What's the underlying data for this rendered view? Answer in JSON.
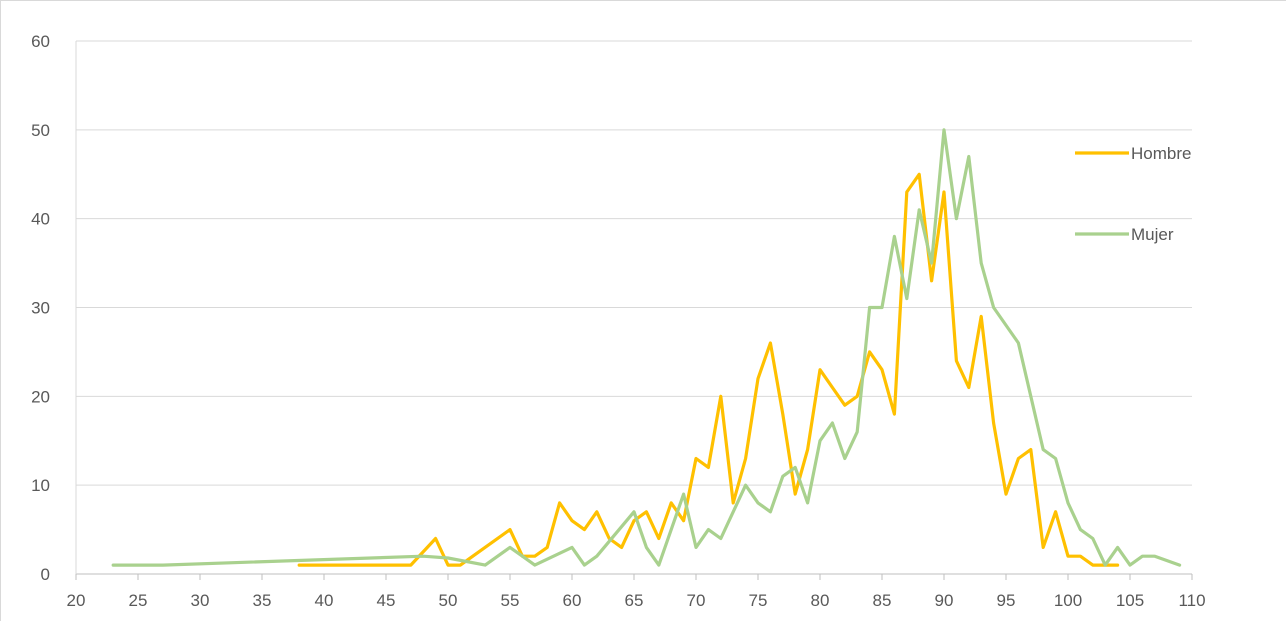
{
  "chart_data": {
    "type": "line",
    "title": "",
    "xlabel": "",
    "ylabel": "",
    "xlim": [
      20,
      110
    ],
    "ylim": [
      0,
      60
    ],
    "x_ticks": [
      "20",
      "25",
      "30",
      "35",
      "40",
      "45",
      "50",
      "55",
      "60",
      "65",
      "70",
      "75",
      "80",
      "85",
      "90",
      "95",
      "100",
      "105",
      "110"
    ],
    "y_ticks": [
      "0",
      "10",
      "20",
      "30",
      "40",
      "50",
      "60"
    ],
    "grid": "horizontal",
    "legend_position": "right",
    "series": [
      {
        "name": "Hombre",
        "color": "#FFC000",
        "points": [
          [
            38,
            1
          ],
          [
            47,
            1
          ],
          [
            49,
            4
          ],
          [
            50,
            1
          ],
          [
            51,
            1
          ],
          [
            52,
            2
          ],
          [
            55,
            5
          ],
          [
            56,
            2
          ],
          [
            57,
            2
          ],
          [
            58,
            3
          ],
          [
            59,
            8
          ],
          [
            60,
            6
          ],
          [
            61,
            5
          ],
          [
            62,
            7
          ],
          [
            63,
            4
          ],
          [
            64,
            3
          ],
          [
            65,
            6
          ],
          [
            66,
            7
          ],
          [
            67,
            4
          ],
          [
            68,
            8
          ],
          [
            69,
            6
          ],
          [
            70,
            13
          ],
          [
            71,
            12
          ],
          [
            72,
            20
          ],
          [
            73,
            8
          ],
          [
            74,
            13
          ],
          [
            75,
            22
          ],
          [
            76,
            26
          ],
          [
            77,
            18
          ],
          [
            78,
            9
          ],
          [
            79,
            14
          ],
          [
            80,
            23
          ],
          [
            81,
            21
          ],
          [
            82,
            19
          ],
          [
            83,
            20
          ],
          [
            84,
            25
          ],
          [
            85,
            23
          ],
          [
            86,
            18
          ],
          [
            87,
            43
          ],
          [
            88,
            45
          ],
          [
            89,
            33
          ],
          [
            90,
            43
          ],
          [
            91,
            24
          ],
          [
            92,
            21
          ],
          [
            93,
            29
          ],
          [
            94,
            17
          ],
          [
            95,
            9
          ],
          [
            96,
            13
          ],
          [
            97,
            14
          ],
          [
            98,
            3
          ],
          [
            99,
            7
          ],
          [
            100,
            2
          ],
          [
            101,
            2
          ],
          [
            102,
            1
          ],
          [
            103,
            1
          ],
          [
            104,
            1
          ]
        ]
      },
      {
        "name": "Mujer",
        "color": "#A9D18E",
        "points": [
          [
            23,
            1
          ],
          [
            27,
            1
          ],
          [
            48,
            2
          ],
          [
            50,
            1.8
          ],
          [
            53,
            1
          ],
          [
            55,
            3
          ],
          [
            56,
            2
          ],
          [
            57,
            1
          ],
          [
            60,
            3
          ],
          [
            61,
            1
          ],
          [
            62,
            2
          ],
          [
            65,
            7
          ],
          [
            66,
            3
          ],
          [
            67,
            1
          ],
          [
            69,
            9
          ],
          [
            70,
            3
          ],
          [
            71,
            5
          ],
          [
            72,
            4
          ],
          [
            74,
            10
          ],
          [
            75,
            8
          ],
          [
            76,
            7
          ],
          [
            77,
            11
          ],
          [
            78,
            12
          ],
          [
            79,
            8
          ],
          [
            80,
            15
          ],
          [
            81,
            17
          ],
          [
            82,
            13
          ],
          [
            83,
            16
          ],
          [
            84,
            30
          ],
          [
            85,
            30
          ],
          [
            86,
            38
          ],
          [
            87,
            31
          ],
          [
            88,
            41
          ],
          [
            89,
            35
          ],
          [
            90,
            50
          ],
          [
            91,
            40
          ],
          [
            92,
            47
          ],
          [
            93,
            35
          ],
          [
            94,
            30
          ],
          [
            96,
            26
          ],
          [
            98,
            14
          ],
          [
            99,
            13
          ],
          [
            100,
            8
          ],
          [
            101,
            5
          ],
          [
            102,
            4
          ],
          [
            103,
            1
          ],
          [
            104,
            3
          ],
          [
            105,
            1
          ],
          [
            106,
            2
          ],
          [
            107,
            2
          ],
          [
            109,
            1
          ]
        ]
      }
    ]
  }
}
